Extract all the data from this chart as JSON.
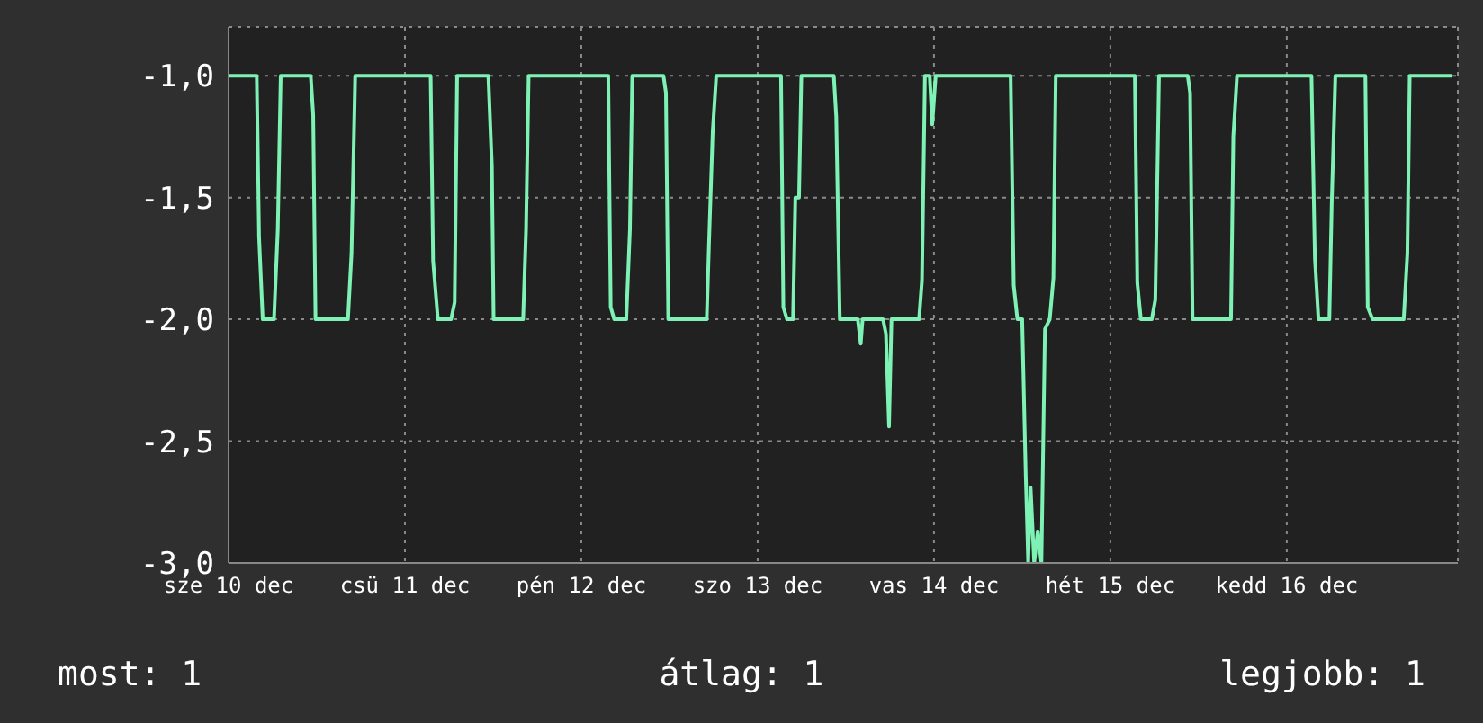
{
  "chart_data": {
    "type": "line",
    "color": "#7ef2b4",
    "grid": true,
    "marker": "none",
    "line_style": "solid",
    "x": [
      "--12-10",
      "--12-10T03:50",
      "--12-10T04:09",
      "--12-10T04:39",
      "--12-10T06:11",
      "--12-10T06:42",
      "--12-10T07:06",
      "--12-10T11:11",
      "--12-10T11:31",
      "--12-10T11:50",
      "--12-10T16:15",
      "--12-10T16:44",
      "--12-10T17:14",
      "--12-11T03:30",
      "--12-11T03:50",
      "--12-11T04:29",
      "--12-11T06:17",
      "--12-11T06:46",
      "--12-11T07:06",
      "--12-11T11:21",
      "--12-11T11:50",
      "--12-11T12:04",
      "--12-11T16:05",
      "--12-11T16:29",
      "--12-11T16:50",
      "--12-12T03:40",
      "--12-12T04:00",
      "--12-12T04:29",
      "--12-12T06:07",
      "--12-12T06:37",
      "--12-12T06:56",
      "--12-12T11:11",
      "--12-12T11:31",
      "--12-12T11:50",
      "--12-12T17:04",
      "--12-12T17:22",
      "--12-12T17:53",
      "--12-12T18:22",
      "--12-13T03:11",
      "--12-13T03:30",
      "--12-13T04:00",
      "--12-13T04:49",
      "--12-13T05:08",
      "--12-13T05:38",
      "--12-13T05:57",
      "--12-13T10:22",
      "--12-13T10:42",
      "--12-13T11:11",
      "--12-13T13:38",
      "--12-13T14:02",
      "--12-13T14:17",
      "--12-13T17:04",
      "--12-13T17:28",
      "--12-13T17:53",
      "--12-13T18:13",
      "--12-13T21:58",
      "--12-13T22:22",
      "--12-13T22:46",
      "--12-13T23:25",
      "--12-13T23:46",
      "--12-14T00:14",
      "--12-14T10:26",
      "--12-14T10:51",
      "--12-14T11:21",
      "--12-14T12:00",
      "--12-14T12:29",
      "--12-14T12:49",
      "--12-14T13:09",
      "--12-14T13:38",
      "--12-14T14:07",
      "--12-14T14:37",
      "--12-14T15:06",
      "--12-14T15:45",
      "--12-14T16:15",
      "--12-14T16:34",
      "--12-15T03:20",
      "--12-15T03:40",
      "--12-15T04:09",
      "--12-15T05:38",
      "--12-15T06:07",
      "--12-15T06:37",
      "--12-15T10:32",
      "--12-15T10:51",
      "--12-15T11:11",
      "--12-15T16:25",
      "--12-15T16:44",
      "--12-15T17:14",
      "--12-16T03:22",
      "--12-16T03:50",
      "--12-16T04:19",
      "--12-16T05:48",
      "--12-16T06:07",
      "--12-16T06:37",
      "--12-16T10:42",
      "--12-16T11:01",
      "--12-16T11:41",
      "--12-16T15:55",
      "--12-16T16:25",
      "--12-16T16:44",
      "--12-16T22:26"
    ],
    "values": [
      -1,
      -1,
      -1.66,
      -2,
      -2,
      -1.63,
      -1,
      -1,
      -1.16,
      -2,
      -2,
      -1.73,
      -1,
      -1,
      -1.76,
      -2,
      -2,
      -1.93,
      -1,
      -1,
      -1.37,
      -2,
      -2,
      -1.63,
      -1,
      -1,
      -1.95,
      -2,
      -2,
      -1.63,
      -1,
      -1,
      -1.07,
      -2,
      -2,
      -1.7,
      -1.23,
      -1,
      -1,
      -1.95,
      -2,
      -2,
      -1.5,
      -1.5,
      -1,
      -1,
      -1.17,
      -2,
      -2,
      -2.1,
      -2,
      -2,
      -2.06,
      -2.44,
      -2,
      -2,
      -1.84,
      -1,
      -1,
      -1.2,
      -1,
      -1,
      -1.86,
      -2,
      -2,
      -2.64,
      -3,
      -2.69,
      -3,
      -2.87,
      -3,
      -2.04,
      -2,
      -1.83,
      -1,
      -1,
      -1.85,
      -2,
      -2,
      -1.92,
      -1,
      -1,
      -1.07,
      -2,
      -2,
      -1.25,
      -1,
      -1,
      -1.75,
      -2,
      -2,
      -1.53,
      -1,
      -1,
      -1.95,
      -2,
      -2,
      -1.73,
      -1,
      -1
    ],
    "xlim": [
      "--12-10",
      "--12-16T23:17"
    ],
    "xticks": [
      {
        "value": "--12-10",
        "label": "sze 10 dec"
      },
      {
        "value": "--12-11",
        "label": "csü 11 dec"
      },
      {
        "value": "--12-12",
        "label": "pén 12 dec"
      },
      {
        "value": "--12-13",
        "label": "szo 13 dec"
      },
      {
        "value": "--12-14",
        "label": "vas 14 dec"
      },
      {
        "value": "--12-15",
        "label": "hét 15 dec"
      },
      {
        "value": "--12-16",
        "label": "kedd 16 dec"
      }
    ],
    "ylim": [
      -3,
      -0.8
    ],
    "yticks": [
      {
        "value": -3,
        "label": "-3,0"
      },
      {
        "value": -2.5,
        "label": "-2,5"
      },
      {
        "value": -2,
        "label": "-2,0"
      },
      {
        "value": -1.5,
        "label": "-1,5"
      },
      {
        "value": -1,
        "label": "-1,0"
      }
    ],
    "annotations": [
      "most: 1",
      "átlag: 1",
      "legjobb: 1"
    ]
  }
}
